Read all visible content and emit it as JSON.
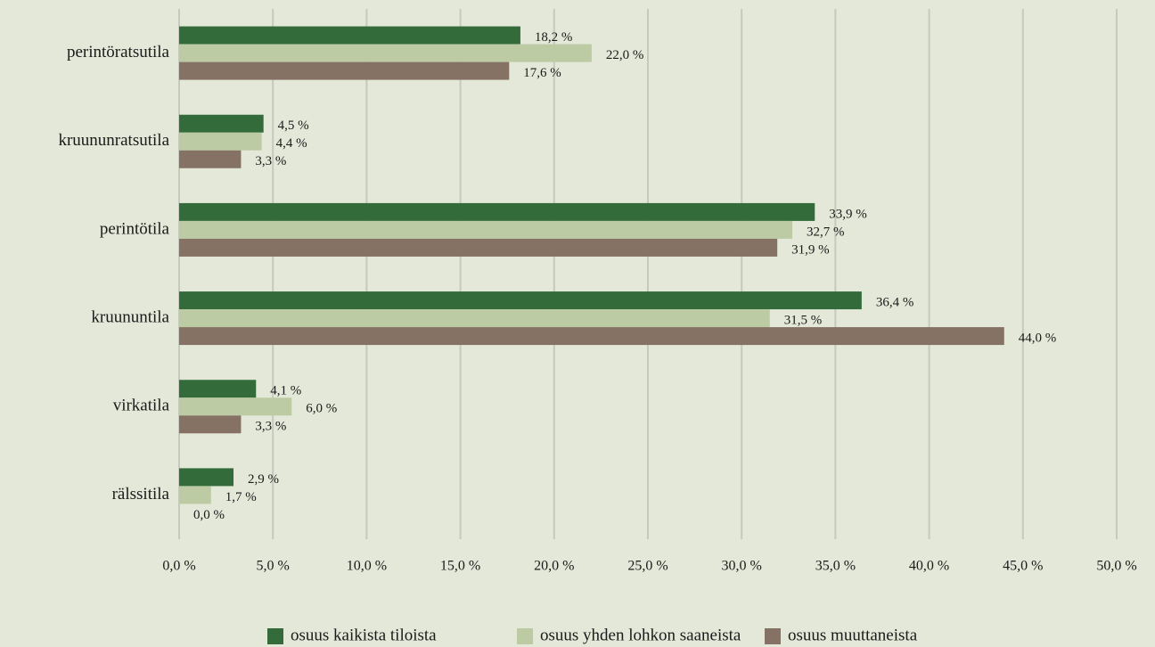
{
  "chart_data": {
    "type": "hbar",
    "categories": [
      "perintöratsutila",
      "kruununratsutila",
      "perintötila",
      "kruununtila",
      "virkatila",
      "rälssitila"
    ],
    "series": [
      {
        "name": "osuus kaikista tiloista",
        "color": "#336b3a",
        "values": [
          18.2,
          4.5,
          33.9,
          36.4,
          4.1,
          2.9
        ],
        "value_labels": [
          "18,2 %",
          "4,5 %",
          "33,9 %",
          "36,4 %",
          "4,1 %",
          "2,9 %"
        ]
      },
      {
        "name": "osuus yhden lohkon saaneista",
        "color": "#bccba3",
        "values": [
          22.0,
          4.4,
          32.7,
          31.5,
          6.0,
          1.7
        ],
        "value_labels": [
          "22,0 %",
          "4,4 %",
          "32,7 %",
          "31,5 %",
          "6,0 %",
          "1,7 %"
        ]
      },
      {
        "name": "osuus muuttaneista",
        "color": "#857264",
        "values": [
          17.6,
          3.3,
          31.9,
          44.0,
          3.3,
          0.0
        ],
        "value_labels": [
          "17,6 %",
          "3,3 %",
          "31,9 %",
          "44,0 %",
          "3,3 %",
          "0,0 %"
        ]
      }
    ],
    "xlim": [
      0,
      50
    ],
    "xticks": [
      {
        "value": 0,
        "label": "0,0 %"
      },
      {
        "value": 5,
        "label": "5,0 %"
      },
      {
        "value": 10,
        "label": "10,0 %"
      },
      {
        "value": 15,
        "label": "15,0 %"
      },
      {
        "value": 20,
        "label": "20,0 %"
      },
      {
        "value": 25,
        "label": "25,0 %"
      },
      {
        "value": 30,
        "label": "30,0 %"
      },
      {
        "value": 35,
        "label": "35,0 %"
      },
      {
        "value": 40,
        "label": "40,0 %"
      },
      {
        "value": 45,
        "label": "45,0 %"
      },
      {
        "value": 50,
        "label": "50,0 %"
      }
    ],
    "grid": true,
    "legend": "bottom"
  }
}
